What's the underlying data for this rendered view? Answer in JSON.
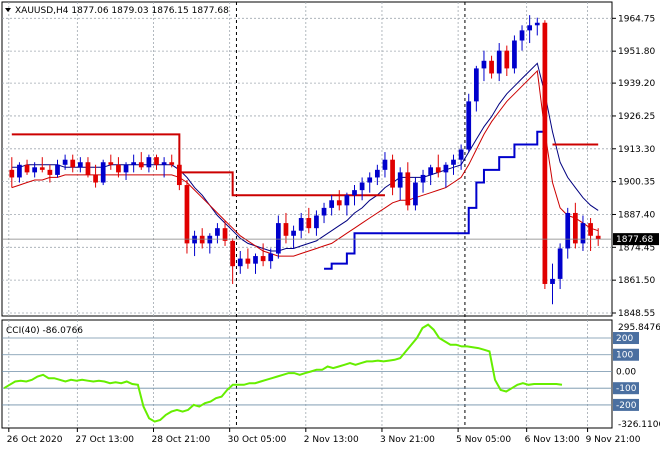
{
  "header": {
    "symbol": "XAUUSD,H4",
    "ohlc": "1877.06 1879.03 1876.15 1877.68"
  },
  "indicator": {
    "label": "CCI(40) -86.0766",
    "max_label": "295.8476",
    "min_label": "-326.1106",
    "levels": [
      200,
      100,
      0,
      -100,
      -200
    ],
    "level_labels": [
      "200",
      "100",
      "0.00",
      "-100",
      "-200"
    ],
    "range": [
      -326.1106,
      295.8476
    ],
    "values": [
      -100,
      -80,
      -60,
      -55,
      -60,
      -50,
      -30,
      -20,
      -40,
      -40,
      -50,
      -60,
      -50,
      -55,
      -50,
      -55,
      -60,
      -55,
      -60,
      -70,
      -65,
      -70,
      -60,
      -75,
      -80,
      -210,
      -280,
      -300,
      -290,
      -260,
      -240,
      -230,
      -240,
      -230,
      -200,
      -210,
      -190,
      -180,
      -160,
      -150,
      -110,
      -80,
      -80,
      -80,
      -70,
      -70,
      -60,
      -50,
      -40,
      -30,
      -20,
      -10,
      -10,
      -20,
      -10,
      0,
      10,
      10,
      30,
      20,
      30,
      40,
      50,
      40,
      50,
      60,
      60,
      65,
      60,
      65,
      70,
      80,
      120,
      160,
      200,
      260,
      280,
      250,
      200,
      180,
      160,
      160,
      150,
      150,
      145,
      140,
      130,
      120,
      -50,
      -110,
      -120,
      -100,
      -80,
      -70,
      -80,
      -75,
      -75,
      -75,
      -75,
      -75,
      -80
    ]
  },
  "current_price": "1877.68",
  "chart_data": {
    "type": "candlestick",
    "title": "XAUUSD,H4",
    "price_range": [
      1848.55,
      1970
    ],
    "y_ticks": [
      1964.75,
      1951.8,
      1939.2,
      1926.25,
      1913.3,
      1900.35,
      1887.4,
      1874.45,
      1861.5,
      1848.55
    ],
    "y_tick_labels": [
      "1964.75",
      "1951.80",
      "1939.20",
      "1926.25",
      "1913.30",
      "1900.35",
      "1887.40",
      "1874.45",
      "1861.50",
      "1848.55"
    ],
    "x_tick_labels": [
      "26 Oct 2020",
      "27 Oct 13:00",
      "28 Oct 21:00",
      "30 Oct 05:00",
      "2 Nov 13:00",
      "3 Nov 21:00",
      "5 Nov 05:00",
      "6 Nov 13:00",
      "9 Nov 21:00"
    ],
    "candles": [
      [
        1905,
        1910,
        1898,
        1902
      ],
      [
        1902,
        1908,
        1900,
        1907
      ],
      [
        1907,
        1909,
        1903,
        1904
      ],
      [
        1904,
        1908,
        1902,
        1906
      ],
      [
        1906,
        1910,
        1904,
        1905
      ],
      [
        1905,
        1907,
        1900,
        1903
      ],
      [
        1903,
        1909,
        1902,
        1907
      ],
      [
        1907,
        1911,
        1905,
        1909
      ],
      [
        1909,
        1911,
        1904,
        1906
      ],
      [
        1906,
        1910,
        1904,
        1908
      ],
      [
        1908,
        1910,
        1902,
        1903
      ],
      [
        1903,
        1907,
        1898,
        1900
      ],
      [
        1900,
        1909,
        1899,
        1908
      ],
      [
        1908,
        1911,
        1905,
        1907
      ],
      [
        1907,
        1910,
        1902,
        1904
      ],
      [
        1904,
        1908,
        1901,
        1907
      ],
      [
        1907,
        1911,
        1904,
        1908
      ],
      [
        1908,
        1912,
        1905,
        1906
      ],
      [
        1906,
        1911,
        1904,
        1910
      ],
      [
        1910,
        1911,
        1905,
        1907
      ],
      [
        1907,
        1910,
        1902,
        1908
      ],
      [
        1908,
        1911,
        1906,
        1907
      ],
      [
        1907,
        1909,
        1897,
        1899
      ],
      [
        1899,
        1901,
        1872,
        1876
      ],
      [
        1876,
        1881,
        1871,
        1879
      ],
      [
        1879,
        1882,
        1874,
        1876
      ],
      [
        1876,
        1880,
        1872,
        1879
      ],
      [
        1879,
        1884,
        1876,
        1882
      ],
      [
        1882,
        1885,
        1875,
        1877
      ],
      [
        1877,
        1878,
        1860,
        1867
      ],
      [
        1867,
        1873,
        1864,
        1870
      ],
      [
        1870,
        1874,
        1866,
        1868
      ],
      [
        1868,
        1872,
        1864,
        1871
      ],
      [
        1871,
        1876,
        1867,
        1869
      ],
      [
        1869,
        1874,
        1866,
        1872
      ],
      [
        1872,
        1887,
        1870,
        1884
      ],
      [
        1884,
        1888,
        1876,
        1879
      ],
      [
        1879,
        1883,
        1874,
        1881
      ],
      [
        1881,
        1888,
        1878,
        1886
      ],
      [
        1886,
        1890,
        1880,
        1882
      ],
      [
        1882,
        1889,
        1879,
        1887
      ],
      [
        1887,
        1892,
        1884,
        1890
      ],
      [
        1890,
        1895,
        1887,
        1893
      ],
      [
        1893,
        1897,
        1889,
        1891
      ],
      [
        1891,
        1896,
        1887,
        1895
      ],
      [
        1895,
        1899,
        1891,
        1897
      ],
      [
        1897,
        1902,
        1893,
        1900
      ],
      [
        1900,
        1904,
        1896,
        1902
      ],
      [
        1902,
        1907,
        1899,
        1905
      ],
      [
        1905,
        1912,
        1902,
        1909
      ],
      [
        1909,
        1911,
        1895,
        1898
      ],
      [
        1898,
        1906,
        1893,
        1904
      ],
      [
        1904,
        1908,
        1889,
        1891
      ],
      [
        1891,
        1902,
        1889,
        1900
      ],
      [
        1900,
        1905,
        1896,
        1903
      ],
      [
        1903,
        1907,
        1899,
        1906
      ],
      [
        1906,
        1911,
        1902,
        1904
      ],
      [
        1904,
        1908,
        1898,
        1907
      ],
      [
        1907,
        1911,
        1903,
        1909
      ],
      [
        1909,
        1915,
        1905,
        1913
      ],
      [
        1913,
        1935,
        1912,
        1932
      ],
      [
        1932,
        1946,
        1928,
        1945
      ],
      [
        1945,
        1952,
        1940,
        1948
      ],
      [
        1948,
        1950,
        1941,
        1943
      ],
      [
        1943,
        1955,
        1940,
        1952
      ],
      [
        1952,
        1954,
        1942,
        1945
      ],
      [
        1945,
        1958,
        1943,
        1956
      ],
      [
        1956,
        1962,
        1952,
        1960
      ],
      [
        1960,
        1966,
        1955,
        1962
      ],
      [
        1962,
        1965,
        1958,
        1963
      ],
      [
        1963,
        1964,
        1858,
        1860
      ],
      [
        1860,
        1868,
        1852,
        1862
      ],
      [
        1862,
        1876,
        1858,
        1874
      ],
      [
        1874,
        1890,
        1870,
        1888
      ],
      [
        1888,
        1892,
        1874,
        1876
      ],
      [
        1876,
        1887,
        1873,
        1884
      ],
      [
        1884,
        1886,
        1873,
        1879
      ],
      [
        1879,
        1882,
        1875,
        1877.68
      ]
    ],
    "series": [
      {
        "color": "#000080",
        "values": [
          1906,
          1906,
          1907,
          1907,
          1907,
          1907,
          1907,
          1906,
          1906,
          1906,
          1906,
          1906,
          1906,
          1907,
          1907,
          1907,
          1907,
          1907,
          1907,
          1907,
          1907,
          1907,
          1905,
          1902,
          1898,
          1895,
          1891,
          1887,
          1884,
          1881,
          1878,
          1876,
          1875,
          1874,
          1873,
          1873,
          1874,
          1874,
          1875,
          1876,
          1877,
          1879,
          1881,
          1883,
          1885,
          1888,
          1890,
          1893,
          1895,
          1898,
          1900,
          1902,
          1902,
          1902,
          1902,
          1903,
          1904,
          1905,
          1906,
          1907,
          1912,
          1917,
          1922,
          1926,
          1931,
          1935,
          1938,
          1941,
          1944,
          1947,
          1935,
          1920,
          1908,
          1902,
          1898,
          1894,
          1891,
          1889
        ]
      },
      {
        "color": "#cc0000",
        "values": [
          1898,
          1899,
          1900,
          1901,
          1901,
          1902,
          1902,
          1903,
          1903,
          1903,
          1903,
          1903,
          1903,
          1903,
          1903,
          1903,
          1903,
          1903,
          1903,
          1903,
          1903,
          1903,
          1902,
          1900,
          1897,
          1894,
          1891,
          1888,
          1885,
          1882,
          1879,
          1877,
          1875,
          1873,
          1872,
          1871,
          1871,
          1871,
          1872,
          1873,
          1874,
          1875,
          1876,
          1878,
          1880,
          1882,
          1884,
          1886,
          1888,
          1890,
          1892,
          1893,
          1893,
          1894,
          1895,
          1896,
          1897,
          1898,
          1900,
          1902,
          1907,
          1913,
          1919,
          1924,
          1928,
          1932,
          1935,
          1938,
          1941,
          1944,
          1920,
          1900,
          1890,
          1887,
          1886,
          1884,
          1882,
          1881
        ]
      },
      {
        "color": "#0000cc",
        "values": [
          null,
          null,
          null,
          null,
          null,
          null,
          null,
          null,
          null,
          null,
          null,
          null,
          null,
          null,
          null,
          null,
          null,
          null,
          null,
          null,
          null,
          null,
          null,
          null,
          null,
          null,
          null,
          null,
          null,
          null,
          null,
          null,
          null,
          null,
          null,
          null,
          null,
          null,
          null,
          null,
          null,
          1866,
          1868,
          1868,
          1872,
          1880,
          1880,
          1880,
          1880,
          1880,
          1880,
          1880,
          1880,
          1880,
          1880,
          1880,
          1880,
          1880,
          1880,
          1880,
          1890,
          1900,
          1905,
          1905,
          1910,
          1910,
          1915,
          1915,
          1915,
          1920,
          1920,
          null,
          null,
          null,
          null,
          null,
          null,
          null
        ]
      },
      {
        "color": "#cc0000",
        "values": [
          1919,
          1919,
          1919,
          1919,
          1919,
          1919,
          1919,
          1919,
          1919,
          1919,
          1919,
          1919,
          1919,
          1919,
          1919,
          1919,
          1919,
          1919,
          1919,
          1919,
          1919,
          1919,
          1904,
          1904,
          1904,
          1904,
          1904,
          1904,
          1904,
          1895,
          1895,
          1895,
          1895,
          1895,
          1895,
          1895,
          1895,
          1895,
          1895,
          1895,
          1895,
          1895,
          1895,
          1895,
          1895,
          1895,
          1895,
          1895,
          1895,
          1895,
          null,
          null,
          null,
          null,
          null,
          null,
          null,
          null,
          null,
          null,
          null,
          null,
          null,
          null,
          null,
          null,
          null,
          null,
          null,
          null,
          null,
          1915,
          1915,
          1915,
          1915,
          1915,
          1915,
          1915
        ]
      }
    ]
  }
}
